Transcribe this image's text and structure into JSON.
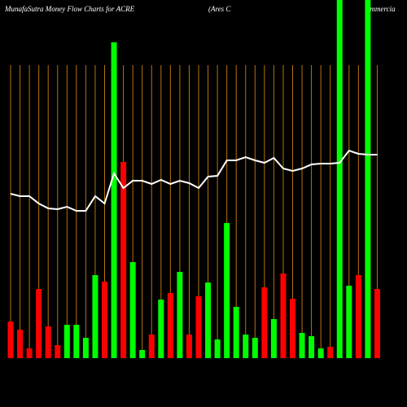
{
  "chart_data": {
    "type": "bar",
    "title_parts": [
      "MunafaSutra  Money Flow  Charts for ACRE",
      "(Ares C",
      "ommercia"
    ],
    "values": [
      45,
      35,
      12,
      85,
      39,
      16,
      41,
      41,
      25,
      102,
      94,
      388,
      241,
      118,
      10,
      29,
      72,
      80,
      106,
      29,
      76,
      93,
      23,
      166,
      63,
      29,
      25,
      87,
      48,
      104,
      73,
      31,
      27,
      12,
      14,
      440,
      89,
      102,
      440,
      85
    ],
    "colors": [
      "#ff0000",
      "#ff0000",
      "#ff0000",
      "#ff0000",
      "#ff0000",
      "#ff0000",
      "#00ff00",
      "#00ff00",
      "#00ff00",
      "#00ff00",
      "#ff0000",
      "#00ff00",
      "#ff0000",
      "#00ff00",
      "#00ff00",
      "#ff0000",
      "#00ff00",
      "#ff0000",
      "#00ff00",
      "#ff0000",
      "#ff0000",
      "#00ff00",
      "#00ff00",
      "#00ff00",
      "#00ff00",
      "#00ff00",
      "#00ff00",
      "#ff0000",
      "#00ff00",
      "#ff0000",
      "#ff0000",
      "#00ff00",
      "#00ff00",
      "#00ff00",
      "#ff0000",
      "#00ff00",
      "#00ff00",
      "#ff0000",
      "#00ff00",
      "#ff0000"
    ],
    "line_values": [
      202,
      199,
      199,
      190,
      184,
      183,
      186,
      181,
      181,
      199,
      190,
      227,
      209,
      218,
      218,
      214,
      219,
      214,
      218,
      215,
      209,
      223,
      224,
      243,
      243,
      247,
      243,
      240,
      246,
      233,
      230,
      233,
      238,
      239,
      239,
      240,
      255,
      251,
      250,
      250
    ],
    "ylim": [
      0,
      440
    ],
    "line_color": "#ffffff",
    "grid_color": "#b8730a"
  }
}
